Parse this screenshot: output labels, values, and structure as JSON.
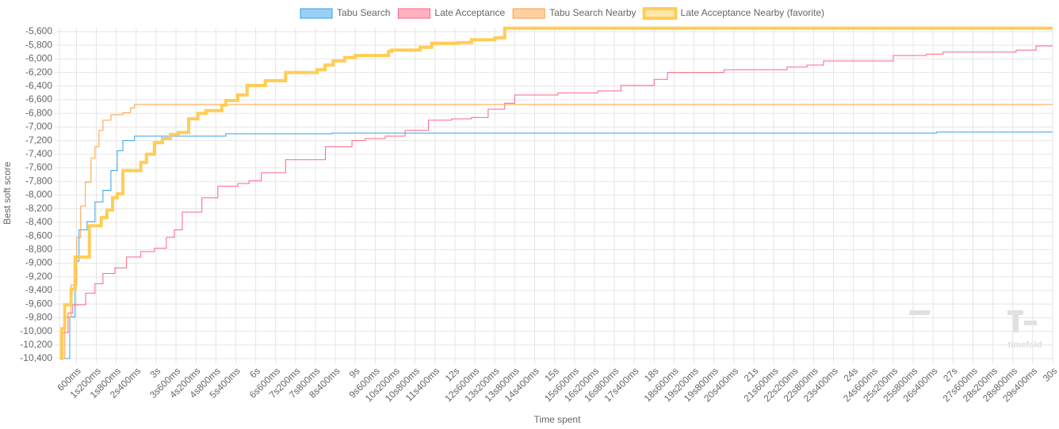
{
  "chart_data": {
    "type": "line",
    "stepped": true,
    "grid": true,
    "x_label": "Time spent",
    "y_label": "Best soft score",
    "watermark": "timefold",
    "xlim": [
      0.09,
      30
    ],
    "ylim": [
      -10400,
      -5540
    ],
    "xticks": [
      {
        "value": 0.6,
        "label": "600ms"
      },
      {
        "value": 1.2,
        "label": "1s200ms"
      },
      {
        "value": 1.8,
        "label": "1s800ms"
      },
      {
        "value": 2.4,
        "label": "2s400ms"
      },
      {
        "value": 3,
        "label": "3s"
      },
      {
        "value": 3.6,
        "label": "3s600ms"
      },
      {
        "value": 4.2,
        "label": "4s200ms"
      },
      {
        "value": 4.8,
        "label": "4s800ms"
      },
      {
        "value": 5.4,
        "label": "5s400ms"
      },
      {
        "value": 6,
        "label": "6s"
      },
      {
        "value": 6.6,
        "label": "6s600ms"
      },
      {
        "value": 7.2,
        "label": "7s200ms"
      },
      {
        "value": 7.8,
        "label": "7s800ms"
      },
      {
        "value": 8.4,
        "label": "8s400ms"
      },
      {
        "value": 9,
        "label": "9s"
      },
      {
        "value": 9.6,
        "label": "9s600ms"
      },
      {
        "value": 10.2,
        "label": "10s200ms"
      },
      {
        "value": 10.8,
        "label": "10s800ms"
      },
      {
        "value": 11.4,
        "label": "11s400ms"
      },
      {
        "value": 12,
        "label": "12s"
      },
      {
        "value": 12.6,
        "label": "12s600ms"
      },
      {
        "value": 13.2,
        "label": "13s200ms"
      },
      {
        "value": 13.8,
        "label": "13s800ms"
      },
      {
        "value": 14.4,
        "label": "14s400ms"
      },
      {
        "value": 15,
        "label": "15s"
      },
      {
        "value": 15.6,
        "label": "15s600ms"
      },
      {
        "value": 16.2,
        "label": "16s200ms"
      },
      {
        "value": 16.8,
        "label": "16s800ms"
      },
      {
        "value": 17.4,
        "label": "17s400ms"
      },
      {
        "value": 18,
        "label": "18s"
      },
      {
        "value": 18.6,
        "label": "18s600ms"
      },
      {
        "value": 19.2,
        "label": "19s200ms"
      },
      {
        "value": 19.8,
        "label": "19s800ms"
      },
      {
        "value": 20.4,
        "label": "20s400ms"
      },
      {
        "value": 21,
        "label": "21s"
      },
      {
        "value": 21.6,
        "label": "21s600ms"
      },
      {
        "value": 22.2,
        "label": "22s200ms"
      },
      {
        "value": 22.8,
        "label": "22s800ms"
      },
      {
        "value": 23.4,
        "label": "23s400ms"
      },
      {
        "value": 24,
        "label": "24s"
      },
      {
        "value": 24.6,
        "label": "24s600ms"
      },
      {
        "value": 25.2,
        "label": "25s200ms"
      },
      {
        "value": 25.8,
        "label": "25s800ms"
      },
      {
        "value": 26.4,
        "label": "26s400ms"
      },
      {
        "value": 27,
        "label": "27s"
      },
      {
        "value": 27.6,
        "label": "27s600ms"
      },
      {
        "value": 28.2,
        "label": "28s200ms"
      },
      {
        "value": 28.8,
        "label": "28s800ms"
      },
      {
        "value": 29.4,
        "label": "29s400ms"
      },
      {
        "value": 30,
        "label": "30s"
      }
    ],
    "yticks": [
      {
        "value": -10400,
        "label": "-10,400"
      },
      {
        "value": -10200,
        "label": "-10,200"
      },
      {
        "value": -10000,
        "label": "-10,000"
      },
      {
        "value": -9800,
        "label": "-9,800"
      },
      {
        "value": -9600,
        "label": "-9,600"
      },
      {
        "value": -9400,
        "label": "-9,400"
      },
      {
        "value": -9200,
        "label": "-9,200"
      },
      {
        "value": -9000,
        "label": "-9,000"
      },
      {
        "value": -8800,
        "label": "-8,800"
      },
      {
        "value": -8600,
        "label": "-8,600"
      },
      {
        "value": -8400,
        "label": "-8,400"
      },
      {
        "value": -8200,
        "label": "-8,200"
      },
      {
        "value": -8000,
        "label": "-8,000"
      },
      {
        "value": -7800,
        "label": "-7,800"
      },
      {
        "value": -7600,
        "label": "-7,600"
      },
      {
        "value": -7400,
        "label": "-7,400"
      },
      {
        "value": -7200,
        "label": "-7,200"
      },
      {
        "value": -7000,
        "label": "-7,000"
      },
      {
        "value": -6800,
        "label": "-6,800"
      },
      {
        "value": -6600,
        "label": "-6,600"
      },
      {
        "value": -6400,
        "label": "-6,400"
      },
      {
        "value": -6200,
        "label": "-6,200"
      },
      {
        "value": -6000,
        "label": "-6,000"
      },
      {
        "value": -5800,
        "label": "-5,800"
      },
      {
        "value": -5600,
        "label": "-5,600"
      }
    ],
    "series": [
      {
        "name": "Tabu Search",
        "color": "#36a2eb",
        "fill": "#9ad0f5",
        "width": 1,
        "x": [
          0.11,
          0.28,
          0.4,
          0.56,
          0.68,
          0.92,
          1.16,
          1.4,
          1.64,
          1.83,
          2.0,
          2.35,
          5.1,
          8.3,
          26.5,
          30
        ],
        "values": [
          -10400,
          -10400,
          -9790,
          -8970,
          -8510,
          -8390,
          -8100,
          -7930,
          -7640,
          -7350,
          -7200,
          -7135,
          -7100,
          -7090,
          -7075,
          -7075
        ]
      },
      {
        "name": "Late Acceptance",
        "color": "#ff6384",
        "fill": "#ffb1c1",
        "width": 1,
        "x": [
          0.11,
          0.2,
          0.35,
          0.49,
          0.88,
          1.16,
          1.4,
          1.76,
          2.11,
          2.54,
          2.95,
          3.31,
          3.55,
          3.79,
          4.38,
          4.86,
          5.46,
          5.8,
          6.17,
          6.9,
          8.1,
          8.9,
          9.3,
          9.9,
          10.5,
          11.2,
          11.9,
          12.5,
          13.0,
          13.5,
          13.8,
          15.1,
          16.3,
          17.0,
          18.0,
          18.4,
          20.1,
          22.0,
          22.6,
          23.1,
          25.2,
          26.2,
          26.7,
          28.9,
          29.5,
          30
        ],
        "values": [
          -10400,
          -10020,
          -9730,
          -9610,
          -9440,
          -9300,
          -9150,
          -9070,
          -8910,
          -8830,
          -8780,
          -8620,
          -8510,
          -8250,
          -8040,
          -7870,
          -7830,
          -7790,
          -7670,
          -7480,
          -7290,
          -7200,
          -7170,
          -7135,
          -7050,
          -6900,
          -6880,
          -6860,
          -6740,
          -6650,
          -6530,
          -6500,
          -6470,
          -6390,
          -6300,
          -6200,
          -6160,
          -6120,
          -6090,
          -6030,
          -5950,
          -5930,
          -5900,
          -5870,
          -5810,
          -5810
        ]
      },
      {
        "name": "Tabu Search Nearby",
        "color": "#ff9f40",
        "fill": "#ffcf9f",
        "width": 1,
        "x": [
          0.11,
          0.25,
          0.44,
          0.61,
          0.73,
          0.87,
          1.04,
          1.16,
          1.28,
          1.4,
          1.64,
          2.0,
          2.23,
          2.35,
          30
        ],
        "values": [
          -10400,
          -9790,
          -9320,
          -8620,
          -8160,
          -7810,
          -7460,
          -7290,
          -7050,
          -6900,
          -6820,
          -6790,
          -6720,
          -6670,
          -6670
        ]
      },
      {
        "name": "Late Acceptance Nearby (favorite)",
        "color": "#ffcd56",
        "fill": "#ffe6aa",
        "width": 4,
        "x": [
          0.11,
          0.16,
          0.25,
          0.44,
          0.56,
          0.99,
          1.35,
          1.52,
          1.69,
          1.83,
          2.0,
          2.54,
          2.71,
          2.95,
          3.19,
          3.43,
          3.67,
          3.98,
          4.26,
          4.5,
          4.98,
          5.1,
          5.46,
          5.74,
          6.29,
          6.9,
          7.85,
          8.09,
          8.33,
          8.68,
          9.0,
          10.0,
          10.1,
          10.95,
          11.3,
          12.1,
          12.5,
          13.2,
          13.5,
          30
        ],
        "values": [
          -10400,
          -9960,
          -9610,
          -9380,
          -8910,
          -8450,
          -8330,
          -8220,
          -8040,
          -7980,
          -7640,
          -7520,
          -7400,
          -7230,
          -7170,
          -7110,
          -7080,
          -6880,
          -6800,
          -6760,
          -6680,
          -6610,
          -6530,
          -6390,
          -6320,
          -6200,
          -6160,
          -6090,
          -6030,
          -5980,
          -5950,
          -5890,
          -5870,
          -5830,
          -5770,
          -5760,
          -5720,
          -5690,
          -5550,
          -5550
        ]
      }
    ]
  }
}
